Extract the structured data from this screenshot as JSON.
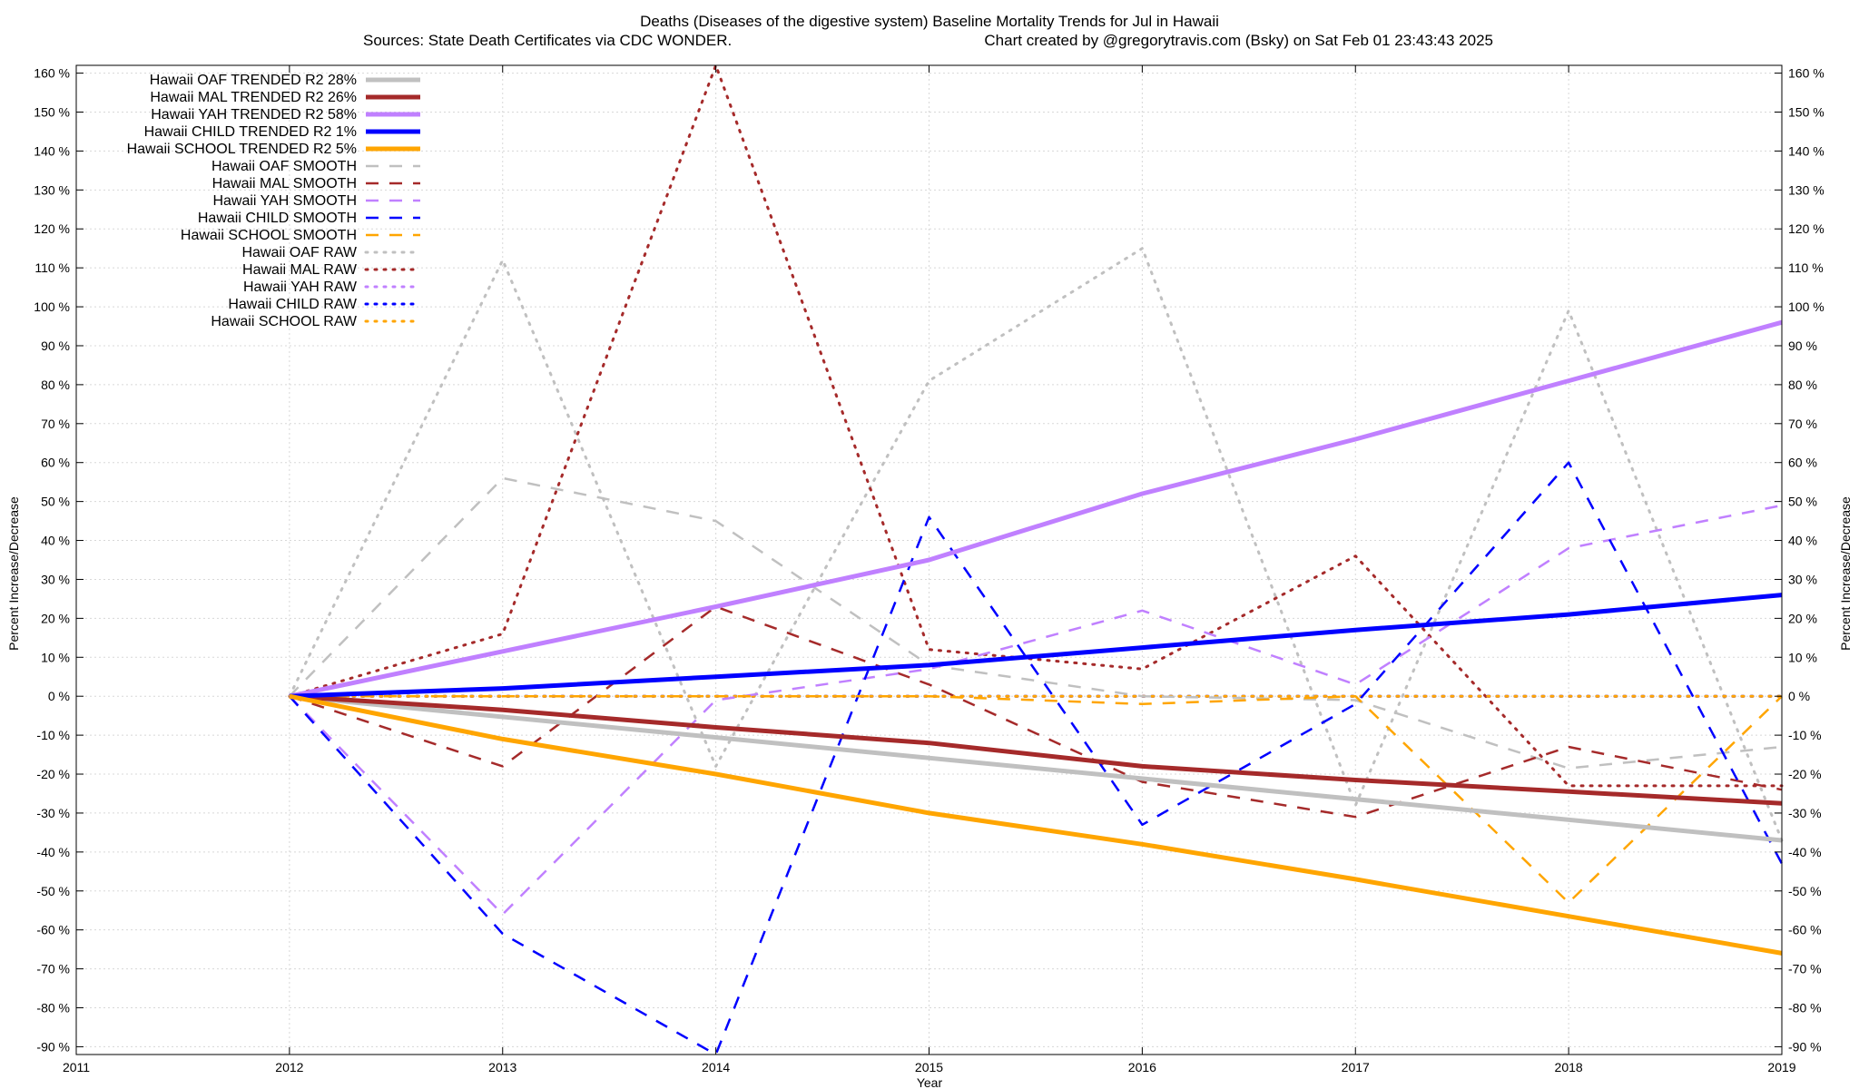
{
  "chart_data": {
    "type": "line",
    "title": "Deaths (Diseases of the digestive system)  Baseline Mortality Trends for Jul in Hawaii",
    "subtitle_left": "Sources: State Death Certificates via CDC WONDER.",
    "subtitle_right": "Chart created by @gregorytravis.com (Bsky) on Sat Feb 01 23:43:43 2025",
    "xlabel": "Year",
    "ylabel": "Percent Increase/Decrease",
    "xlim": [
      2011,
      2019
    ],
    "ylim": [
      -92,
      162
    ],
    "x_ticks": [
      2011,
      2012,
      2013,
      2014,
      2015,
      2016,
      2017,
      2018,
      2019
    ],
    "y_ticks": [
      -90,
      -80,
      -70,
      -60,
      -50,
      -40,
      -30,
      -20,
      -10,
      0,
      10,
      20,
      30,
      40,
      50,
      60,
      70,
      80,
      90,
      100,
      110,
      120,
      130,
      140,
      150,
      160
    ],
    "y_tick_suffix": " %",
    "grid": true,
    "legend_position": "top-left",
    "series": [
      {
        "name": "Hawaii OAF TRENDED R2  28%",
        "color": "#c0c0c0",
        "style": "solid",
        "width": 5,
        "x": [
          2012,
          2019
        ],
        "y": [
          0,
          -37
        ]
      },
      {
        "name": "Hawaii MAL TRENDED R2  26%",
        "color": "#a52a2a",
        "style": "solid",
        "width": 5,
        "x": [
          2012,
          2013,
          2014,
          2015,
          2016,
          2017,
          2018,
          2019
        ],
        "y": [
          0,
          -3.5,
          -8,
          -12,
          -18,
          -21.5,
          -24.5,
          -27.5
        ]
      },
      {
        "name": "Hawaii YAH TRENDED R2  58%",
        "color": "#c080ff",
        "style": "solid",
        "width": 5,
        "x": [
          2012,
          2013,
          2014,
          2015,
          2016,
          2017,
          2018,
          2019
        ],
        "y": [
          0,
          11.5,
          23,
          35,
          52,
          66,
          81,
          96
        ]
      },
      {
        "name": "Hawaii CHILD TRENDED R2   1%",
        "color": "#0000ff",
        "style": "solid",
        "width": 5,
        "x": [
          2012,
          2013,
          2014,
          2015,
          2016,
          2017,
          2018,
          2019
        ],
        "y": [
          0,
          2,
          5,
          8,
          12.5,
          17,
          21,
          26
        ]
      },
      {
        "name": "Hawaii SCHOOL TRENDED R2   5%",
        "color": "#ffa500",
        "style": "solid",
        "width": 5,
        "x": [
          2012,
          2013,
          2014,
          2015,
          2016,
          2017,
          2018,
          2019
        ],
        "y": [
          0,
          -11,
          -20,
          -30,
          -38,
          -47,
          -56.5,
          -66
        ]
      },
      {
        "name": "Hawaii OAF SMOOTH",
        "color": "#c0c0c0",
        "style": "dashed",
        "width": 2.5,
        "x": [
          2012,
          2013,
          2014,
          2015,
          2016,
          2017,
          2018,
          2019
        ],
        "y": [
          0,
          56,
          45,
          8,
          0,
          -1,
          -18.5,
          -13
        ]
      },
      {
        "name": "Hawaii MAL SMOOTH",
        "color": "#a52a2a",
        "style": "dashed",
        "width": 2.5,
        "x": [
          2012,
          2013,
          2014,
          2015,
          2016,
          2017,
          2018,
          2019
        ],
        "y": [
          0,
          -18,
          23,
          3,
          -22,
          -31,
          -13,
          -24
        ]
      },
      {
        "name": "Hawaii YAH SMOOTH",
        "color": "#c080ff",
        "style": "dashed",
        "width": 2.5,
        "x": [
          2012,
          2013,
          2014,
          2015,
          2016,
          2017,
          2018,
          2019
        ],
        "y": [
          0,
          -56,
          -1,
          7,
          22,
          3,
          38,
          49
        ]
      },
      {
        "name": "Hawaii CHILD SMOOTH",
        "color": "#0000ff",
        "style": "dashed",
        "width": 2.5,
        "x": [
          2012,
          2013,
          2014,
          2015,
          2016,
          2017,
          2018,
          2019
        ],
        "y": [
          0,
          -61,
          -92,
          46,
          -33,
          -2,
          60,
          -43
        ]
      },
      {
        "name": "Hawaii SCHOOL SMOOTH",
        "color": "#ffa500",
        "style": "dashed",
        "width": 2.5,
        "x": [
          2012,
          2013,
          2014,
          2015,
          2016,
          2017,
          2018,
          2019
        ],
        "y": [
          0,
          0,
          0,
          0,
          -2,
          0,
          -53,
          0
        ]
      },
      {
        "name": "Hawaii OAF RAW",
        "color": "#c0c0c0",
        "style": "dotted",
        "width": 3,
        "x": [
          2012,
          2013,
          2014,
          2015,
          2016,
          2017,
          2018,
          2019
        ],
        "y": [
          0,
          112,
          -18,
          81,
          115,
          -28,
          99,
          -37
        ]
      },
      {
        "name": "Hawaii MAL RAW",
        "color": "#a52a2a",
        "style": "dotted",
        "width": 3,
        "x": [
          2012,
          2013,
          2014,
          2015,
          2016,
          2017,
          2018,
          2019
        ],
        "y": [
          0,
          16,
          162,
          12,
          7,
          36,
          -23,
          -23
        ]
      },
      {
        "name": "Hawaii YAH RAW",
        "color": "#c080ff",
        "style": "dotted",
        "width": 3,
        "x": [
          2012,
          2013,
          2014,
          2015,
          2016,
          2017,
          2018,
          2019
        ],
        "y": [
          0,
          0,
          0,
          0,
          0,
          0,
          0,
          0
        ]
      },
      {
        "name": "Hawaii CHILD RAW",
        "color": "#0000ff",
        "style": "dotted",
        "width": 3,
        "x": [
          2012,
          2013,
          2014,
          2015,
          2016,
          2017,
          2018,
          2019
        ],
        "y": [
          0,
          0,
          0,
          0,
          0,
          0,
          0,
          0
        ]
      },
      {
        "name": "Hawaii SCHOOL RAW",
        "color": "#ffa500",
        "style": "dotted",
        "width": 3,
        "x": [
          2012,
          2013,
          2014,
          2015,
          2016,
          2017,
          2018,
          2019
        ],
        "y": [
          0,
          0,
          0,
          0,
          0,
          0,
          0,
          0
        ]
      }
    ]
  }
}
